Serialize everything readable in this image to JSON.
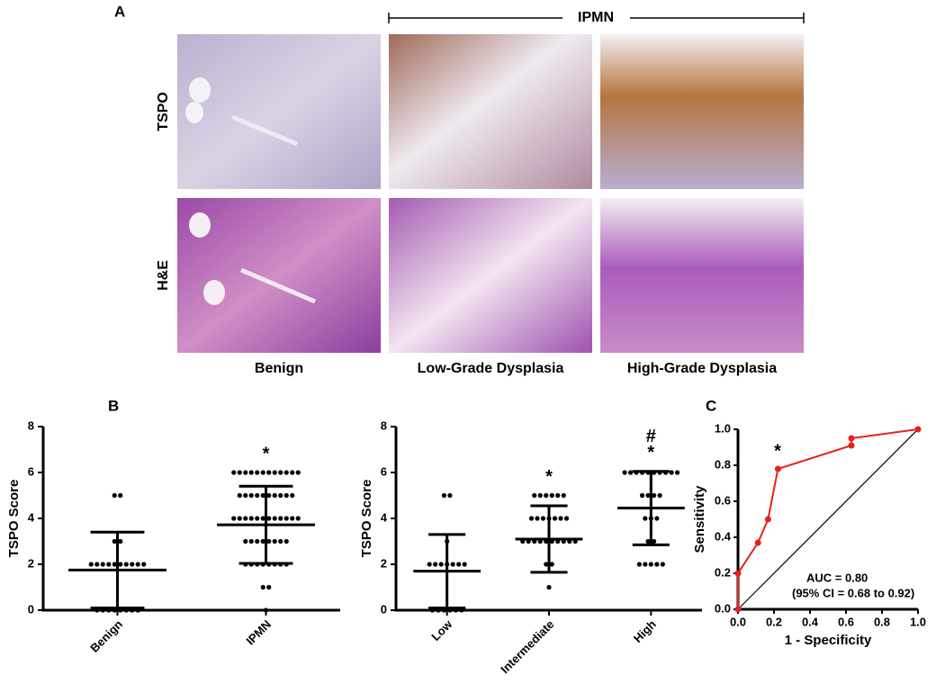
{
  "panel_labels": [
    "A",
    "B",
    "C"
  ],
  "panel_a": {
    "bracket_label": "IPMN",
    "row_labels": [
      "TSPO",
      "H&E"
    ],
    "column_labels": [
      "Benign",
      "Low-Grade Dysplasia",
      "High-Grade Dysplasia"
    ]
  },
  "chart_data": [
    {
      "type": "dotplot",
      "ylabel": "TSPO Score",
      "categories": [
        "Benign",
        "IPMN"
      ],
      "points": [
        [
          0,
          0,
          0,
          0,
          0,
          0,
          0,
          0,
          2,
          2,
          2,
          2,
          2,
          2,
          2,
          2,
          2,
          2,
          3,
          3,
          5,
          5
        ],
        [
          0,
          1,
          1,
          2,
          2,
          2,
          2,
          2,
          2,
          2,
          2,
          3,
          3,
          3,
          3,
          3,
          3,
          3,
          3,
          4,
          4,
          4,
          4,
          4,
          4,
          4,
          4,
          4,
          4,
          4,
          4,
          5,
          5,
          5,
          5,
          5,
          5,
          5,
          5,
          5,
          5,
          6,
          6,
          6,
          6,
          6,
          6,
          6,
          6,
          6,
          6,
          6,
          6
        ]
      ],
      "mean": [
        1.75,
        3.72
      ],
      "sd": [
        1.65,
        1.68
      ],
      "color": "#000000",
      "annotations": [
        {
          "x": "IPMN",
          "text": "*"
        }
      ],
      "ylim": [
        0,
        8
      ],
      "yticks": [
        0,
        2,
        4,
        6,
        8
      ]
    },
    {
      "type": "dotplot",
      "ylabel": "TSPO Score",
      "categories": [
        "Low",
        "Intermediate",
        "High"
      ],
      "points": [
        [
          0,
          0,
          0,
          0,
          0,
          0,
          2,
          2,
          2,
          2,
          2,
          2,
          2,
          3,
          5,
          5
        ],
        [
          1,
          2,
          2,
          3,
          3,
          3,
          3,
          3,
          3,
          3,
          3,
          3,
          3,
          4,
          4,
          4,
          4,
          4,
          4,
          4,
          5,
          5,
          5,
          5,
          5,
          5
        ],
        [
          2,
          2,
          2,
          2,
          2,
          3,
          3,
          4,
          4,
          4,
          5,
          5,
          5,
          5,
          6,
          6,
          6,
          6,
          6,
          6,
          6,
          6,
          6,
          6
        ]
      ],
      "mean": [
        1.7,
        3.1,
        4.45
      ],
      "sd": [
        1.6,
        1.45,
        1.6
      ],
      "color": "#000000",
      "annotations": [
        {
          "x": "Intermediate",
          "text": "*"
        },
        {
          "x": "High",
          "text": "*"
        },
        {
          "x": "High",
          "text": "#"
        }
      ],
      "ylim": [
        0,
        8
      ],
      "yticks": [
        0,
        2,
        4,
        6,
        8
      ]
    },
    {
      "type": "line",
      "xlabel": "1 - Specificity",
      "ylabel": "Sensitivity",
      "x": [
        0,
        0,
        0.111,
        0.167,
        0.222,
        0.63,
        0.63,
        1
      ],
      "y": [
        0,
        0.2,
        0.37,
        0.5,
        0.78,
        0.91,
        0.95,
        1
      ],
      "color": "#e8201c",
      "annotations": [
        "*",
        "AUC = 0.80",
        "(95% CI = 0.68 to 0.92)"
      ],
      "xlim": [
        0,
        1
      ],
      "ylim": [
        0,
        1
      ],
      "xticks": [
        {
          "value": 0,
          "label": "0.0"
        },
        0.2,
        0.4,
        0.6,
        0.8,
        {
          "value": 1,
          "label": "1.0"
        }
      ],
      "yticks": [
        {
          "value": 0,
          "label": "0.0"
        },
        0.2,
        0.4,
        0.6,
        0.8,
        {
          "value": 1,
          "label": "1.0"
        }
      ]
    }
  ]
}
